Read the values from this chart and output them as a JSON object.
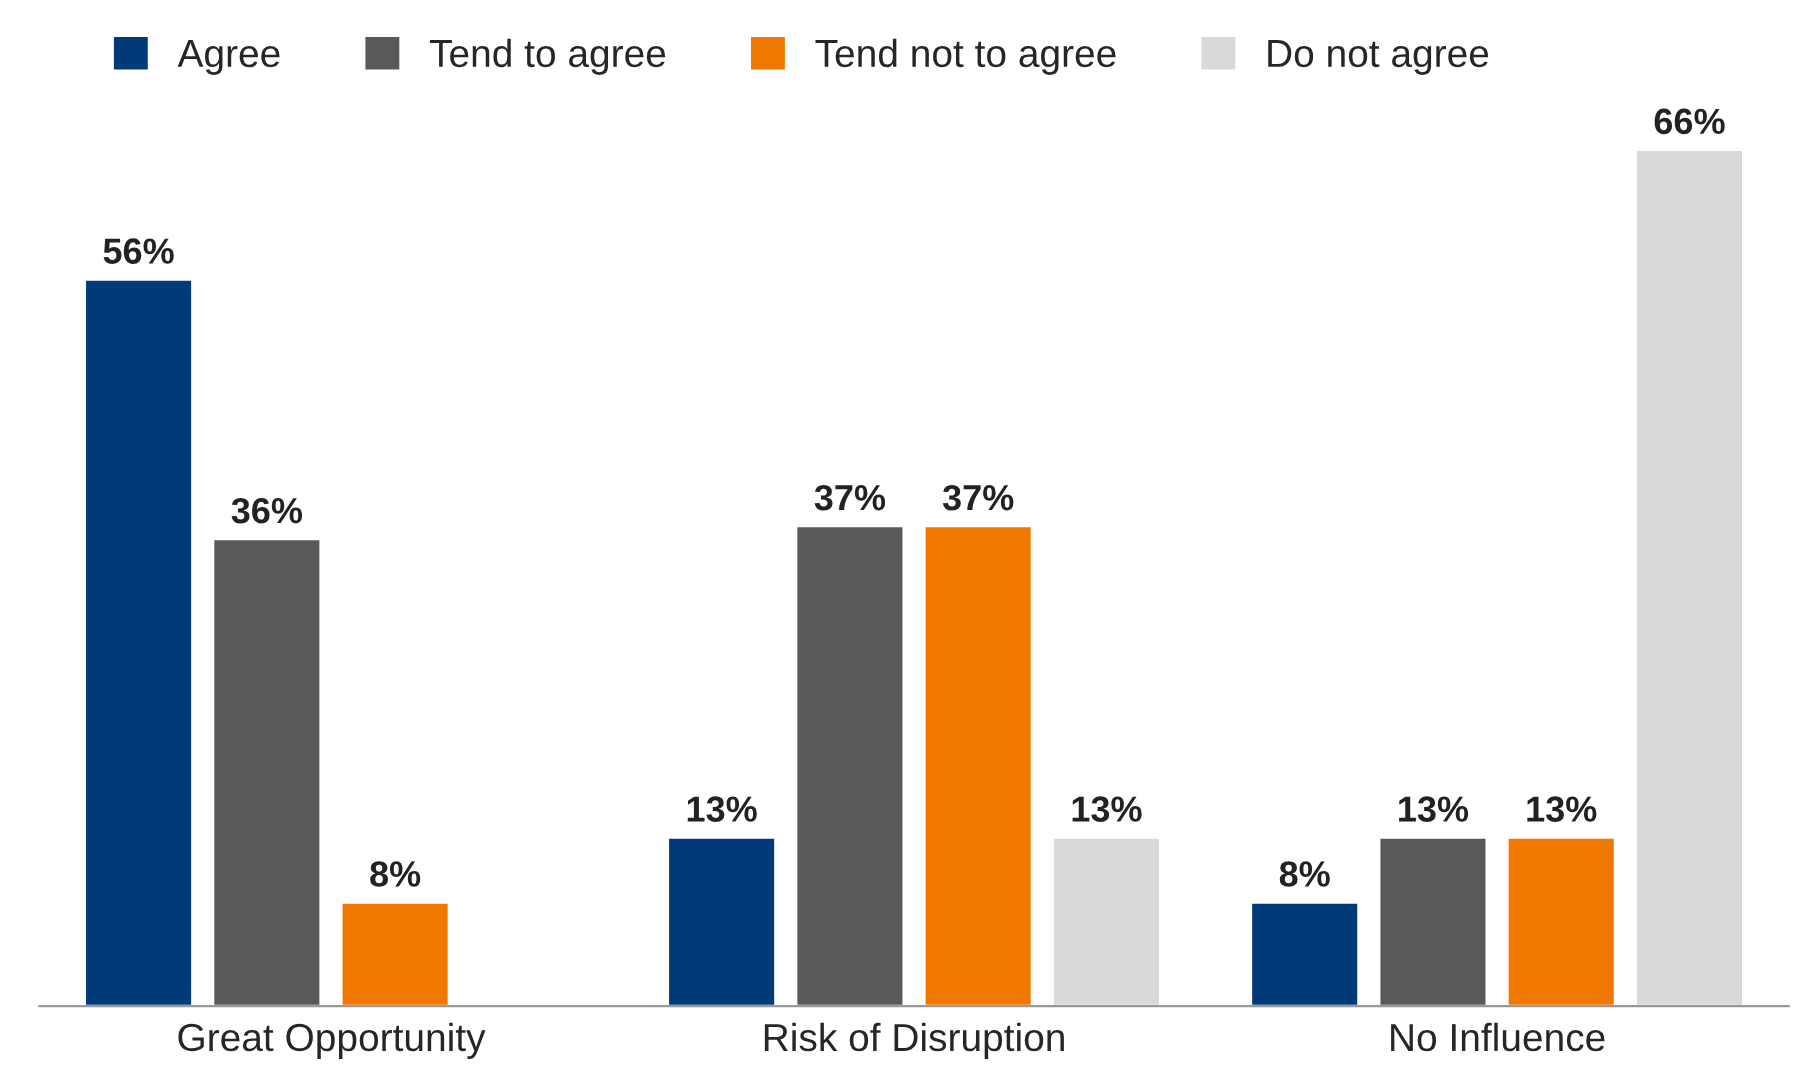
{
  "chart_data": {
    "type": "bar",
    "categories": [
      "Great Opportunity",
      "Risk of Disruption",
      "No Influence"
    ],
    "series": [
      {
        "name": "Agree",
        "color": "#003a78",
        "values": [
          56,
          13,
          8
        ],
        "value_labels": [
          "56%",
          "13%",
          "8%"
        ]
      },
      {
        "name": "Tend to agree",
        "color": "#595959",
        "values": [
          36,
          37,
          13
        ],
        "value_labels": [
          "36%",
          "37%",
          "13%"
        ]
      },
      {
        "name": "Tend not to agree",
        "color": "#f07800",
        "values": [
          8,
          37,
          13
        ],
        "value_labels": [
          "8%",
          "37%",
          "13%"
        ]
      },
      {
        "name": "Do not agree",
        "color": "#d9d9d9",
        "values": [
          null,
          13,
          66
        ],
        "value_labels": [
          null,
          "13%",
          "66%"
        ]
      }
    ],
    "legend": "top left",
    "grid": false,
    "tick_labels": "x"
  }
}
